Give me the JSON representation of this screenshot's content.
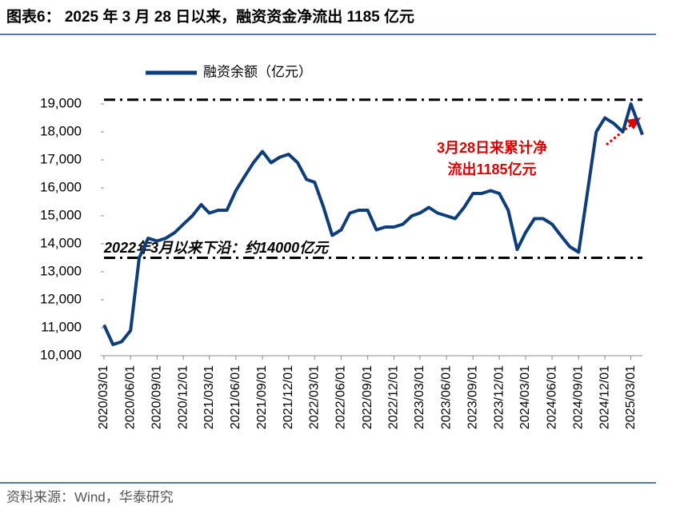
{
  "chart_data": {
    "type": "line",
    "title": "图表6： 2025 年 3 月 28 日以来，融资资金净流出 1185 亿元",
    "source": "资料来源：Wind，华泰研究",
    "x": [
      "2020/03/01",
      "2020/04/01",
      "2020/05/01",
      "2020/06/01",
      "2020/07/01",
      "2020/08/01",
      "2020/09/01",
      "2020/10/01",
      "2020/11/01",
      "2020/12/01",
      "2021/01/01",
      "2021/02/01",
      "2021/03/01",
      "2021/04/01",
      "2021/05/01",
      "2021/06/01",
      "2021/07/01",
      "2021/08/01",
      "2021/09/01",
      "2021/10/01",
      "2021/11/01",
      "2021/12/01",
      "2022/01/01",
      "2022/02/01",
      "2022/03/01",
      "2022/04/01",
      "2022/05/01",
      "2022/06/01",
      "2022/07/01",
      "2022/08/01",
      "2022/09/01",
      "2022/10/01",
      "2022/11/01",
      "2022/12/01",
      "2023/01/01",
      "2023/02/01",
      "2023/03/01",
      "2023/04/01",
      "2023/05/01",
      "2023/06/01",
      "2023/07/01",
      "2023/08/01",
      "2023/09/01",
      "2023/10/01",
      "2023/11/01",
      "2023/12/01",
      "2024/01/01",
      "2024/02/01",
      "2024/03/01",
      "2024/04/01",
      "2024/05/01",
      "2024/06/01",
      "2024/07/01",
      "2024/08/01",
      "2024/09/01",
      "2024/10/01",
      "2024/11/01",
      "2024/12/01",
      "2025/01/01",
      "2025/02/01",
      "2025/03/01",
      "2025/04/10"
    ],
    "series": [
      {
        "name": "融资余额（亿元）",
        "color": "#0d3d7a",
        "values": [
          11100,
          10400,
          10500,
          10900,
          13500,
          14200,
          14100,
          14200,
          14400,
          14700,
          15000,
          15400,
          15100,
          15200,
          15200,
          15900,
          16400,
          16900,
          17300,
          16900,
          17100,
          17200,
          16900,
          16300,
          16200,
          15300,
          14300,
          14500,
          15100,
          15200,
          15200,
          14500,
          14600,
          14600,
          14700,
          15000,
          15100,
          15300,
          15100,
          15000,
          14900,
          15300,
          15800,
          15800,
          15900,
          15800,
          15200,
          13800,
          14400,
          14900,
          14900,
          14700,
          14300,
          13900,
          13700,
          15800,
          18000,
          18500,
          18300,
          18000,
          19000,
          17900
        ]
      }
    ],
    "xlim": [
      "2020/03/01",
      "2025/04/10"
    ],
    "xticks": [
      "2020/03/01",
      "2020/06/01",
      "2020/09/01",
      "2020/12/01",
      "2021/03/01",
      "2021/06/01",
      "2021/09/01",
      "2021/12/01",
      "2022/03/01",
      "2022/06/01",
      "2022/09/01",
      "2022/12/01",
      "2023/03/01",
      "2023/06/01",
      "2023/09/01",
      "2023/12/01",
      "2024/03/01",
      "2024/06/01",
      "2024/09/01",
      "2024/12/01",
      "2025/03/01"
    ],
    "ylim": [
      10000,
      19000
    ],
    "yticks": [
      {
        "value": 10000,
        "label": "10,000"
      },
      {
        "value": 11000,
        "label": "11,000"
      },
      {
        "value": 12000,
        "label": "12,000"
      },
      {
        "value": 13000,
        "label": "13,000"
      },
      {
        "value": 14000,
        "label": "14,000"
      },
      {
        "value": 15000,
        "label": "15,000"
      },
      {
        "value": 16000,
        "label": "16,000"
      },
      {
        "value": 17000,
        "label": "17,000"
      },
      {
        "value": 18000,
        "label": "18,000"
      },
      {
        "value": 19000,
        "label": "19,000"
      }
    ],
    "reference_lines": [
      19150,
      13500
    ],
    "annotations": [
      "2022年3月以来下沿：约14000亿元",
      "3月28日来累计净",
      "流出1185亿元"
    ]
  }
}
